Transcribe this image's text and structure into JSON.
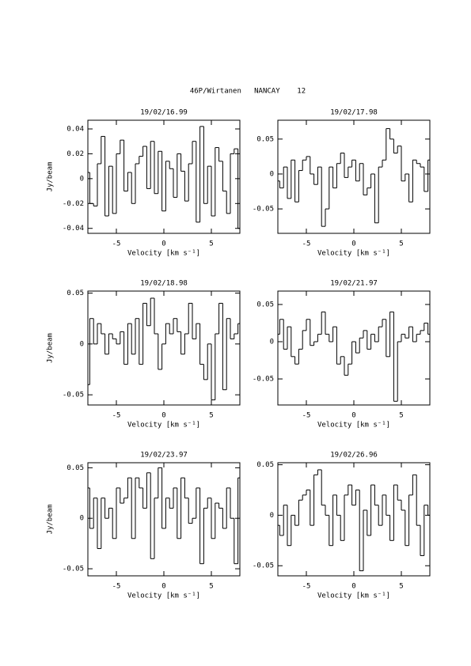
{
  "header": {
    "title": "46P/Wirtanen   NANCAY    12"
  },
  "chart_data": [
    {
      "type": "line",
      "drawstyle": "steps-mid",
      "title": "19/02/16.99",
      "xlabel": "Velocity [km s⁻¹]",
      "ylabel": "Jy/beam",
      "color": "#000000",
      "xlim": [
        -8,
        8
      ],
      "xticks": [
        -5,
        0,
        5
      ],
      "ylim": [
        -0.044,
        0.047
      ],
      "yticks": [
        -0.04,
        -0.02,
        0,
        0.02,
        0.04
      ],
      "x": [
        -8,
        -7.6,
        -7.2,
        -6.8,
        -6.4,
        -6,
        -5.6,
        -5.2,
        -4.8,
        -4.4,
        -4,
        -3.6,
        -3.2,
        -2.8,
        -2.4,
        -2,
        -1.6,
        -1.2,
        -0.8,
        -0.4,
        0,
        0.4,
        0.8,
        1.2,
        1.6,
        2,
        2.4,
        2.8,
        3.2,
        3.6,
        4,
        4.4,
        4.8,
        5.2,
        5.6,
        6,
        6.4,
        6.8,
        7.2,
        7.6,
        8
      ],
      "values": [
        0.005,
        -0.02,
        -0.022,
        0.012,
        0.034,
        -0.03,
        0.01,
        -0.028,
        0.02,
        0.031,
        -0.01,
        0.005,
        -0.02,
        0.012,
        0.018,
        0.026,
        -0.008,
        0.03,
        -0.012,
        0.022,
        -0.026,
        0.014,
        0.008,
        -0.015,
        0.02,
        0.006,
        -0.018,
        0.012,
        0.03,
        -0.035,
        0.042,
        -0.02,
        0.01,
        -0.03,
        0.025,
        0.014,
        -0.01,
        -0.028,
        0.02,
        0.024,
        -0.04
      ]
    },
    {
      "type": "line",
      "drawstyle": "steps-mid",
      "title": "19/02/17.98",
      "xlabel": "Velocity [km s⁻¹]",
      "color": "#000000",
      "xlim": [
        -8,
        8
      ],
      "xticks": [
        -5,
        0,
        5
      ],
      "ylim": [
        -0.085,
        0.077
      ],
      "yticks": [
        -0.05,
        0,
        0.05
      ],
      "x": [
        -8,
        -7.6,
        -7.2,
        -6.8,
        -6.4,
        -6,
        -5.6,
        -5.2,
        -4.8,
        -4.4,
        -4,
        -3.6,
        -3.2,
        -2.8,
        -2.4,
        -2,
        -1.6,
        -1.2,
        -0.8,
        -0.4,
        0,
        0.4,
        0.8,
        1.2,
        1.6,
        2,
        2.4,
        2.8,
        3.2,
        3.6,
        4,
        4.4,
        4.8,
        5.2,
        5.6,
        6,
        6.4,
        6.8,
        7.2,
        7.6,
        8
      ],
      "values": [
        -0.01,
        -0.02,
        0.01,
        -0.035,
        0.02,
        -0.04,
        0.005,
        0.02,
        0.025,
        0.0,
        -0.015,
        0.01,
        -0.075,
        -0.05,
        0.01,
        -0.02,
        0.015,
        0.03,
        -0.005,
        0.01,
        0.02,
        -0.01,
        0.015,
        -0.03,
        -0.02,
        0.0,
        -0.07,
        0.01,
        0.02,
        0.065,
        0.05,
        0.03,
        0.04,
        -0.01,
        0.0,
        -0.04,
        0.02,
        0.015,
        0.01,
        -0.025,
        0.02
      ]
    },
    {
      "type": "line",
      "drawstyle": "steps-mid",
      "title": "19/02/18.98",
      "xlabel": "Velocity [km s⁻¹]",
      "ylabel": "Jy/beam",
      "color": "#000000",
      "xlim": [
        -8,
        8
      ],
      "xticks": [
        -5,
        0,
        5
      ],
      "ylim": [
        -0.06,
        0.052
      ],
      "yticks": [
        -0.05,
        0,
        0.05
      ],
      "x": [
        -8,
        -7.6,
        -7.2,
        -6.8,
        -6.4,
        -6,
        -5.6,
        -5.2,
        -4.8,
        -4.4,
        -4,
        -3.6,
        -3.2,
        -2.8,
        -2.4,
        -2,
        -1.6,
        -1.2,
        -0.8,
        -0.4,
        0,
        0.4,
        0.8,
        1.2,
        1.6,
        2,
        2.4,
        2.8,
        3.2,
        3.6,
        4,
        4.4,
        4.8,
        5.2,
        5.6,
        6,
        6.4,
        6.8,
        7.2,
        7.6,
        8
      ],
      "values": [
        -0.04,
        0.025,
        0.0,
        0.02,
        0.01,
        -0.01,
        0.01,
        0.005,
        0.0,
        0.012,
        -0.02,
        0.02,
        -0.01,
        0.025,
        -0.02,
        0.04,
        0.018,
        0.045,
        0.01,
        -0.025,
        0.0,
        0.02,
        0.01,
        0.025,
        0.012,
        -0.01,
        0.01,
        0.04,
        0.005,
        0.02,
        -0.02,
        -0.035,
        0.0,
        -0.055,
        0.01,
        0.04,
        -0.045,
        0.025,
        0.005,
        0.01,
        0.02
      ]
    },
    {
      "type": "line",
      "drawstyle": "steps-mid",
      "title": "19/02/21.97",
      "xlabel": "Velocity [km s⁻¹]",
      "color": "#000000",
      "xlim": [
        -8,
        8
      ],
      "xticks": [
        -5,
        0,
        5
      ],
      "ylim": [
        -0.085,
        0.068
      ],
      "yticks": [
        -0.05,
        0,
        0.05
      ],
      "x": [
        -8,
        -7.6,
        -7.2,
        -6.8,
        -6.4,
        -6,
        -5.6,
        -5.2,
        -4.8,
        -4.4,
        -4,
        -3.6,
        -3.2,
        -2.8,
        -2.4,
        -2,
        -1.6,
        -1.2,
        -0.8,
        -0.4,
        0,
        0.4,
        0.8,
        1.2,
        1.6,
        2,
        2.4,
        2.8,
        3.2,
        3.6,
        4,
        4.4,
        4.8,
        5.2,
        5.6,
        6,
        6.4,
        6.8,
        7.2,
        7.6,
        8
      ],
      "values": [
        0.01,
        0.03,
        -0.01,
        0.02,
        -0.02,
        -0.03,
        -0.01,
        0.015,
        0.03,
        -0.005,
        0.0,
        0.01,
        0.04,
        0.01,
        0.0,
        0.02,
        -0.03,
        -0.02,
        -0.045,
        -0.03,
        0.0,
        -0.015,
        0.005,
        0.015,
        -0.01,
        0.01,
        0.0,
        0.02,
        0.03,
        -0.02,
        0.04,
        -0.08,
        0.0,
        0.01,
        0.005,
        0.02,
        0.0,
        0.01,
        0.015,
        0.025,
        0.01
      ]
    },
    {
      "type": "line",
      "drawstyle": "steps-mid",
      "title": "19/02/23.97",
      "xlabel": "Velocity [km s⁻¹]",
      "ylabel": "Jy/beam",
      "color": "#000000",
      "xlim": [
        -8,
        8
      ],
      "xticks": [
        -5,
        0,
        5
      ],
      "ylim": [
        -0.057,
        0.055
      ],
      "yticks": [
        -0.05,
        0,
        0.05
      ],
      "x": [
        -8,
        -7.6,
        -7.2,
        -6.8,
        -6.4,
        -6,
        -5.6,
        -5.2,
        -4.8,
        -4.4,
        -4,
        -3.6,
        -3.2,
        -2.8,
        -2.4,
        -2,
        -1.6,
        -1.2,
        -0.8,
        -0.4,
        0,
        0.4,
        0.8,
        1.2,
        1.6,
        2,
        2.4,
        2.8,
        3.2,
        3.6,
        4,
        4.4,
        4.8,
        5.2,
        5.6,
        6,
        6.4,
        6.8,
        7.2,
        7.6,
        8
      ],
      "values": [
        0.03,
        -0.01,
        0.02,
        -0.03,
        0.02,
        0.0,
        0.01,
        -0.02,
        0.03,
        0.015,
        0.02,
        0.04,
        -0.02,
        0.04,
        0.03,
        0.01,
        0.045,
        -0.04,
        0.02,
        0.05,
        -0.01,
        0.02,
        0.01,
        0.03,
        -0.02,
        0.04,
        0.02,
        -0.005,
        0.0,
        0.03,
        -0.045,
        0.01,
        0.02,
        -0.02,
        0.015,
        0.01,
        -0.01,
        0.03,
        0.0,
        -0.045,
        0.04
      ]
    },
    {
      "type": "line",
      "drawstyle": "steps-mid",
      "title": "19/02/26.96",
      "xlabel": "Velocity [km s⁻¹]",
      "color": "#000000",
      "xlim": [
        -8,
        8
      ],
      "xticks": [
        -5,
        0,
        5
      ],
      "ylim": [
        -0.06,
        0.052
      ],
      "yticks": [
        -0.05,
        0,
        0.05
      ],
      "x": [
        -8,
        -7.6,
        -7.2,
        -6.8,
        -6.4,
        -6,
        -5.6,
        -5.2,
        -4.8,
        -4.4,
        -4,
        -3.6,
        -3.2,
        -2.8,
        -2.4,
        -2,
        -1.6,
        -1.2,
        -0.8,
        -0.4,
        0,
        0.4,
        0.8,
        1.2,
        1.6,
        2,
        2.4,
        2.8,
        3.2,
        3.6,
        4,
        4.4,
        4.8,
        5.2,
        5.6,
        6,
        6.4,
        6.8,
        7.2,
        7.6,
        8
      ],
      "values": [
        -0.01,
        -0.02,
        0.01,
        -0.03,
        0.0,
        -0.01,
        0.015,
        0.02,
        0.025,
        -0.01,
        0.04,
        0.045,
        0.01,
        0.0,
        -0.03,
        0.02,
        0.0,
        -0.025,
        0.02,
        0.03,
        0.01,
        0.025,
        -0.055,
        0.005,
        -0.02,
        0.03,
        0.01,
        -0.01,
        0.02,
        0.0,
        -0.025,
        0.03,
        0.015,
        0.005,
        -0.03,
        0.02,
        0.04,
        -0.01,
        -0.04,
        0.01,
        0.0
      ]
    }
  ]
}
